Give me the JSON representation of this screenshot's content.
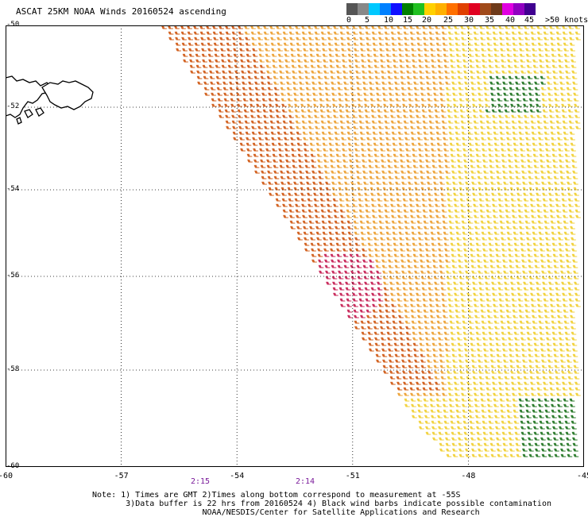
{
  "title": "ASCAT 25KM NOAA Winds 20160524 ascending",
  "legend": {
    "labels": [
      "0",
      "5",
      "10",
      "15",
      "20",
      "25",
      "30",
      "35",
      "40",
      "45",
      ">50 knots"
    ],
    "colors": [
      "#555555",
      "#888888",
      "#00c8ff",
      "#0080ff",
      "#1010ff",
      "#008000",
      "#20c020",
      "#ffd000",
      "#ffb000",
      "#ff7000",
      "#e04000",
      "#e00020",
      "#a04a1a",
      "#6e3a1a",
      "#e000e0",
      "#9000c0",
      "#400090"
    ]
  },
  "axes": {
    "lon_ticks": [
      "-60",
      "-57",
      "-54",
      "-51",
      "-48",
      "-45"
    ],
    "lat_ticks": [
      "-50",
      "-52",
      "-54",
      "-56",
      "-58",
      "-60"
    ],
    "lon_range": [
      -60,
      -45
    ],
    "lat_range": [
      -50,
      -60
    ],
    "grid": true
  },
  "times": [
    "2:15",
    "2:14"
  ],
  "notes": {
    "line1": "Note: 1) Times are GMT 2)Times along bottom correspond to measurement at -55S",
    "line2": "3)Data buffer is 22 hrs from 20160524 4) Black wind barbs indicate possible contamination",
    "line3": "NOAA/NESDIS/Center for Satellite Applications and Research"
  },
  "wind_field": {
    "swath_edge": "west edge from ~-55.8 lon at -50 lat to ~-49.5 lon at -59.7 lat",
    "barb_colors": {
      "low": "#f2d23c",
      "mid": "#eea43a",
      "high": "#d2601e",
      "peak": "#c8285a",
      "calm": "#2a7a2a"
    }
  }
}
